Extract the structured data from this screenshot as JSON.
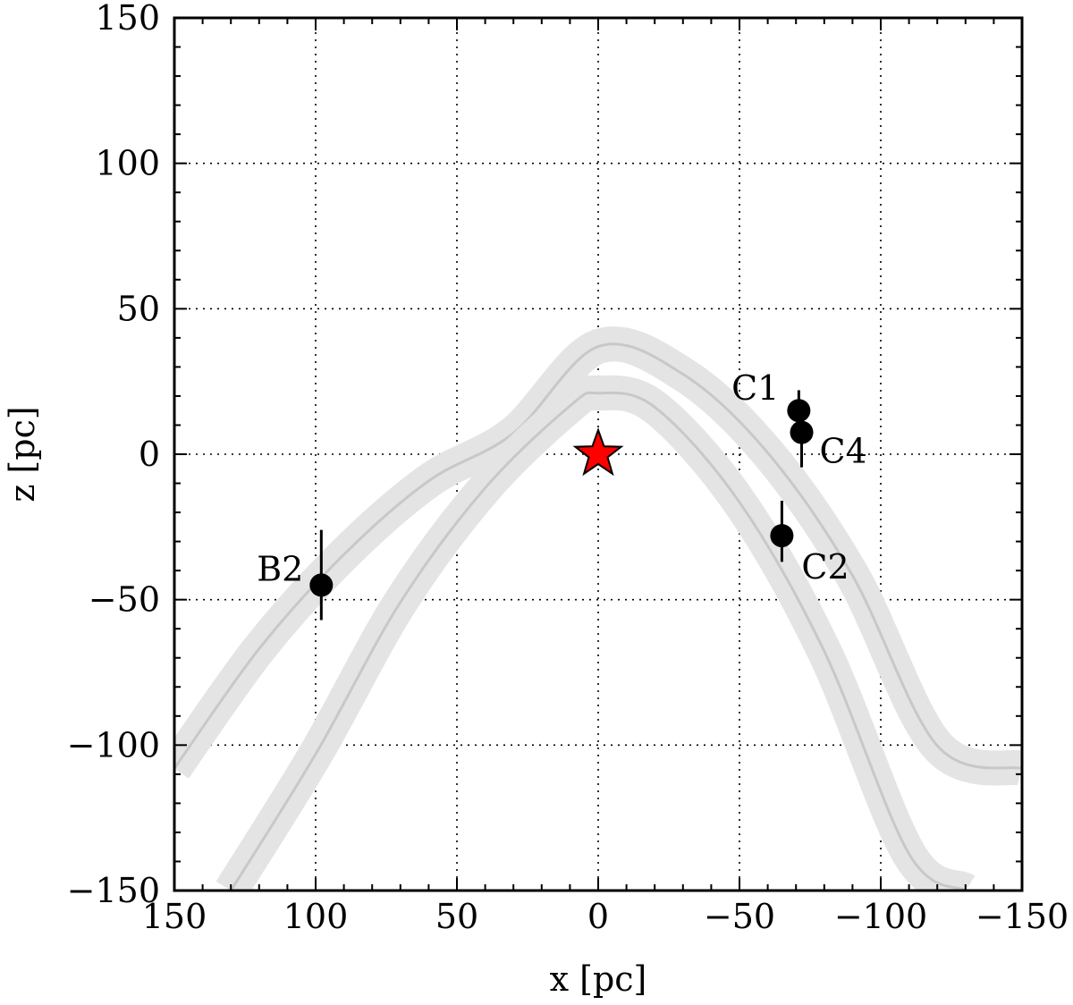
{
  "chart_data": {
    "type": "scatter",
    "title": "",
    "xlabel": "x [pc]",
    "ylabel": "z [pc]",
    "xlim": [
      150,
      -150
    ],
    "ylim": [
      -150,
      150
    ],
    "x_inverted": true,
    "xticks": [
      150,
      100,
      50,
      0,
      -50,
      -100,
      -150
    ],
    "yticks": [
      150,
      100,
      50,
      0,
      -50,
      -100,
      -150
    ],
    "xtick_labels": [
      "150",
      "100",
      "50",
      "0",
      "−50",
      "−100",
      "−150"
    ],
    "ytick_labels": [
      "150",
      "100",
      "50",
      "0",
      "−50",
      "−100",
      "−150"
    ],
    "grid": true,
    "marker": {
      "name": "star-icon",
      "x": 0,
      "z": 0,
      "color": "#ff0000"
    },
    "points": [
      {
        "label": "B2",
        "x": 98,
        "z": -45,
        "z_err_low": 12,
        "z_err_high": 19
      },
      {
        "label": "C1",
        "x": -71,
        "z": 15,
        "z_err_low": 7,
        "z_err_high": 7
      },
      {
        "label": "C4",
        "x": -72,
        "z": 7.5,
        "z_err_low": 12,
        "z_err_high": 8
      },
      {
        "label": "C2",
        "x": -65,
        "z": -28,
        "z_err_low": 9,
        "z_err_high": 12
      }
    ],
    "curves": [
      {
        "name": "outer-band",
        "x": [
          150,
          120,
          90,
          60,
          30,
          0,
          -30,
          -60,
          -90,
          -120,
          -150
        ],
        "z": [
          -108,
          -66.9,
          -34.5,
          -9.2,
          7.2,
          37,
          27.5,
          0.5,
          -41.7,
          -100.2,
          -108
        ],
        "band_width": 6,
        "color": "#e4e4e4",
        "center_color": "#c8c8c8"
      },
      {
        "name": "inner-band",
        "x": [
          130,
          100,
          70,
          40,
          10,
          0,
          -20,
          -50,
          -80,
          -110,
          -130
        ],
        "z": [
          -150,
          -103.1,
          -50.9,
          -11.6,
          16.6,
          21,
          16.2,
          -16.5,
          -67.7,
          -137.4,
          -150
        ],
        "band_width": 6,
        "color": "#e4e4e4",
        "center_color": "#c8c8c8"
      }
    ],
    "point_color": "#000000"
  }
}
